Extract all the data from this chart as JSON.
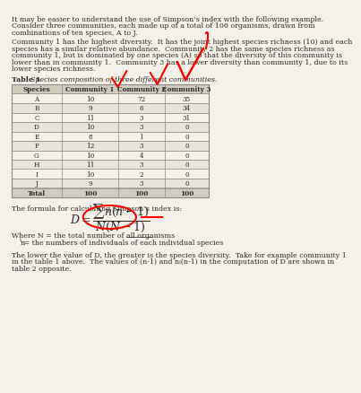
{
  "intro_text": "It may be easier to understand the use of Simpson’s index with the following example.\nConsider three communities, each made up of a total of 100 organisms, drawn from\ncombinations of ten species, A to J.",
  "para2_text": "Community 1 has the highest diversity.  It has the joint highest species richness (10) and each\nspecies has a similar relative abundance.  Community 2 has the same species richness as\ncommunity 1, but is dominated by one species (A) so that the diversity of this community is\nlower than in community 1.  Community 3 has a lower diversity than community 1, due to its\nlower species richness.",
  "table_title": "Table 1 ",
  "table_title_italic": "Species composition of three different communities.",
  "col_headers": [
    "Species",
    "Community 1",
    "Community 2",
    "Community 3"
  ],
  "species": [
    "A",
    "B",
    "C",
    "D",
    "E",
    "F",
    "G",
    "H",
    "I",
    "J",
    "Total"
  ],
  "community1": [
    10,
    9,
    11,
    10,
    8,
    12,
    10,
    11,
    10,
    9,
    100
  ],
  "community2": [
    72,
    6,
    3,
    3,
    1,
    3,
    4,
    3,
    2,
    3,
    100
  ],
  "community3": [
    35,
    34,
    31,
    0,
    0,
    0,
    0,
    0,
    0,
    0,
    100
  ],
  "formula_text": "The formula for calculating Simpson’s index is:",
  "formula_label": "D = \\frac{\\sum n(n-1)}{N(N-1)}",
  "where_text": "Where N = the total number of all organisms\n    n",
  "subscript_i": "i",
  "where_text2": " = the numbers of individuals of each individual species",
  "closing_text": "The lower the value of D, the greater is the species diversity.  Take for example community 1\nin the table 1 above.  The values of (n-1) and nᵢ(n-1) in the computation of D are shown in\ntable 2 opposite.",
  "bg_color": "#f5f0e8",
  "text_color": "#2b2b2b",
  "table_header_bg": "#d0ccc0",
  "table_row_alt": "#e8e4da",
  "table_border": "#888888"
}
